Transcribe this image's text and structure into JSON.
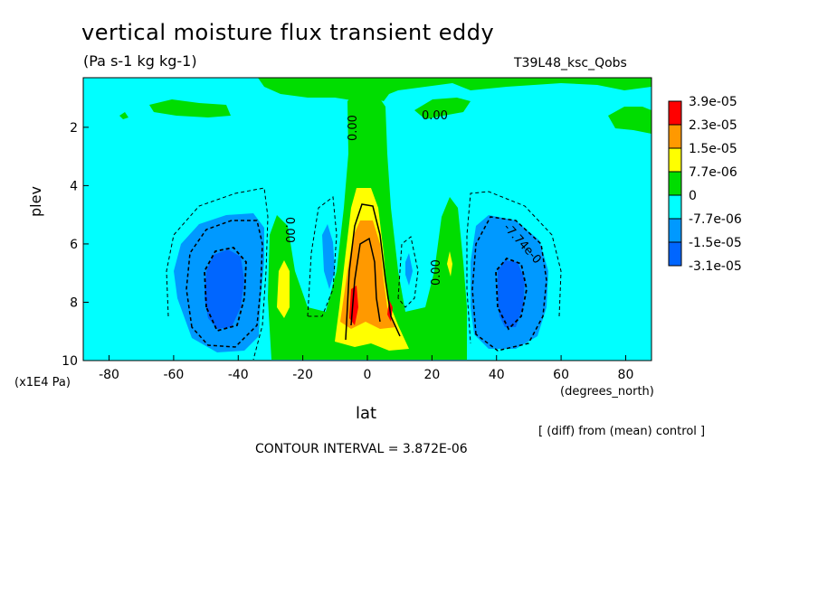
{
  "chart_data": {
    "type": "heatmap",
    "title": "vertical moisture flux transient eddy",
    "units": "(Pa s-1 kg kg-1)",
    "run_label": "T39L48_ksc_Qobs",
    "xlabel": "lat",
    "ylabel": "plev",
    "x_unit": "(degrees_north)",
    "y_unit": "(x1E4 Pa)",
    "xlim": [
      -88,
      88
    ],
    "ylim": [
      10,
      0.3
    ],
    "x_ticks": [
      -80,
      -60,
      -40,
      -20,
      0,
      20,
      40,
      60,
      80
    ],
    "y_ticks": [
      2,
      4,
      6,
      8,
      10
    ],
    "subtitle_note": "[ (diff) from (mean) control ]",
    "contour_interval": "CONTOUR INTERVAL = 3.872E-06",
    "colorbar": {
      "labels": [
        "3.9e-05",
        "2.3e-05",
        "1.5e-05",
        "7.7e-06",
        "0",
        "-7.7e-06",
        "-1.5e-05",
        "-3.1e-05"
      ],
      "colors": [
        "#ff0000",
        "#ff9900",
        "#ffff00",
        "#00dd00",
        "#00ffff",
        "#0099ff",
        "#0066ff"
      ]
    },
    "contour_labels": [
      "0.00",
      "0.00",
      "0.00",
      "0.00",
      "-7.74e-0"
    ],
    "features": [
      {
        "name": "upward tropical maximum",
        "lat": 0,
        "plev_range": [
          4,
          9.5
        ],
        "peak": 3.9e-05
      },
      {
        "name": "southern downward minimum",
        "lat": -45,
        "plev": 7.5,
        "min": -3.1e-05
      },
      {
        "name": "northern downward minimum",
        "lat": 45,
        "plev": 7.5,
        "min": -3.1e-05
      },
      {
        "name": "southern subtropical positive band",
        "lat": -26,
        "plev_range": [
          5.5,
          9.5
        ]
      },
      {
        "name": "northern subtropical positive band",
        "lat": 26,
        "plev_range": [
          4.5,
          9.5
        ]
      }
    ]
  }
}
